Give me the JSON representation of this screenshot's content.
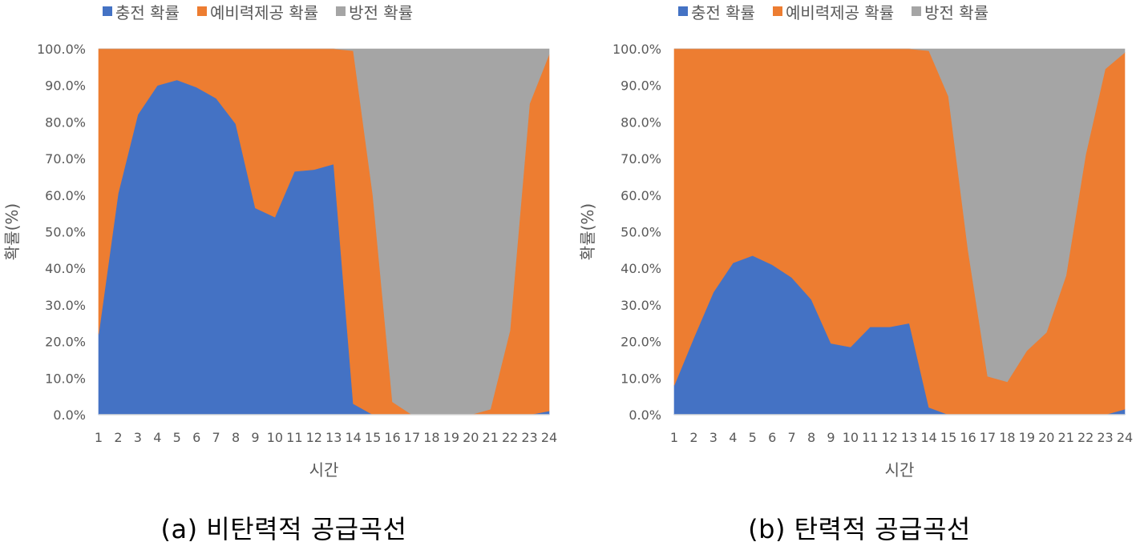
{
  "colors": {
    "charge": "#4472C4",
    "reserve": "#ED7D31",
    "discharge": "#A5A5A5",
    "axis": "#D9D9D9",
    "text": "#595959"
  },
  "captions": {
    "a": "(a) 비탄력적 공급곡선",
    "b": "(b) 탄력적 공급곡선"
  },
  "chart_data": [
    {
      "type": "area",
      "stacked": "percent",
      "x": [
        1,
        2,
        3,
        4,
        5,
        6,
        7,
        8,
        9,
        10,
        11,
        12,
        13,
        14,
        15,
        16,
        17,
        18,
        19,
        20,
        21,
        22,
        23,
        24
      ],
      "xlabel": "시간",
      "ylabel": "확률(%)",
      "ylim": [
        0,
        100
      ],
      "yticks": [
        "0.0%",
        "10.0%",
        "20.0%",
        "30.0%",
        "40.0%",
        "50.0%",
        "60.0%",
        "70.0%",
        "80.0%",
        "90.0%",
        "100.0%"
      ],
      "legend_position": "top",
      "series": [
        {
          "name": "충전 확률",
          "values": [
            22,
            60.5,
            82,
            90,
            91.5,
            89.5,
            86.5,
            79.5,
            56.5,
            54,
            66.5,
            67,
            68.5,
            3,
            0,
            0,
            0,
            0,
            0,
            0,
            0,
            0,
            0,
            1
          ]
        },
        {
          "name": "예비력제공 확률",
          "values": [
            78,
            39.5,
            18,
            10,
            8.5,
            10.5,
            13.5,
            20.5,
            43.5,
            46,
            33.5,
            33,
            31.5,
            96.5,
            60,
            3.5,
            0,
            0,
            0,
            0,
            1.5,
            23,
            85,
            97.5
          ]
        },
        {
          "name": "방전 확률",
          "values": [
            0,
            0,
            0,
            0,
            0,
            0,
            0,
            0,
            0,
            0,
            0,
            0,
            0,
            0.5,
            40,
            96.5,
            100,
            100,
            100,
            100,
            98.5,
            77,
            15,
            1.5
          ]
        }
      ]
    },
    {
      "type": "area",
      "stacked": "percent",
      "x": [
        1,
        2,
        3,
        4,
        5,
        6,
        7,
        8,
        9,
        10,
        11,
        12,
        13,
        14,
        15,
        16,
        17,
        18,
        19,
        20,
        21,
        22,
        23,
        24
      ],
      "xlabel": "시간",
      "ylabel": "확률(%)",
      "ylim": [
        0,
        100
      ],
      "yticks": [
        "0.0%",
        "10.0%",
        "20.0%",
        "30.0%",
        "40.0%",
        "50.0%",
        "60.0%",
        "70.0%",
        "80.0%",
        "90.0%",
        "100.0%"
      ],
      "legend_position": "top",
      "series": [
        {
          "name": "충전 확률",
          "values": [
            8,
            21,
            33.5,
            41.5,
            43.5,
            41,
            37.5,
            31.5,
            19.5,
            18.5,
            24,
            24,
            25,
            2,
            0,
            0,
            0,
            0,
            0,
            0,
            0,
            0,
            0,
            1.5
          ]
        },
        {
          "name": "예비력제공 확률",
          "values": [
            92,
            79,
            66.5,
            58.5,
            56.5,
            59,
            62.5,
            68.5,
            80.5,
            81.5,
            76,
            76,
            75,
            97.5,
            87,
            45,
            10.5,
            9,
            17.5,
            22.5,
            38,
            71,
            94.5,
            97.5
          ]
        },
        {
          "name": "방전 확률",
          "values": [
            0,
            0,
            0,
            0,
            0,
            0,
            0,
            0,
            0,
            0,
            0,
            0,
            0,
            0.5,
            13,
            55,
            89.5,
            91,
            82.5,
            77.5,
            62,
            29,
            5.5,
            1
          ]
        }
      ]
    }
  ]
}
